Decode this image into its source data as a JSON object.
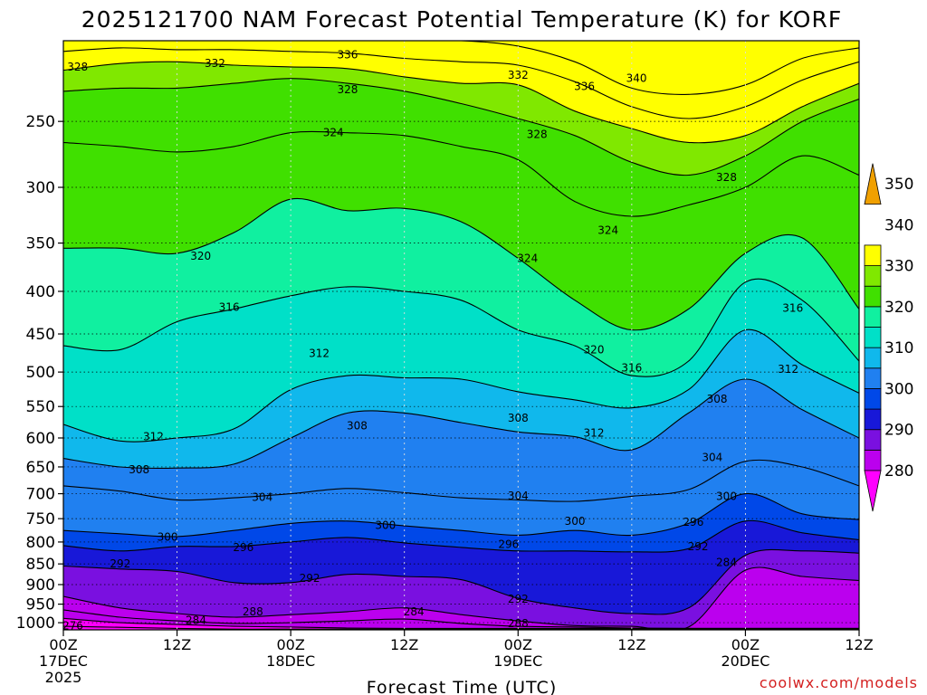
{
  "chart_data": {
    "type": "heatmap",
    "title": "2025121700 NAM Forecast Potential Temperature (K) for KORF",
    "xlabel": "Forecast Time (UTC)",
    "ylabel": "",
    "credit": "coolwx.com/models",
    "x_axis": {
      "range_hours": [
        0,
        84
      ],
      "ticks": [
        {
          "hour": 0,
          "label": "00Z",
          "date": "17DEC",
          "year": "2025"
        },
        {
          "hour": 12,
          "label": "12Z",
          "date": "",
          "year": ""
        },
        {
          "hour": 24,
          "label": "00Z",
          "date": "18DEC",
          "year": ""
        },
        {
          "hour": 36,
          "label": "12Z",
          "date": "",
          "year": ""
        },
        {
          "hour": 48,
          "label": "00Z",
          "date": "19DEC",
          "year": ""
        },
        {
          "hour": 60,
          "label": "12Z",
          "date": "",
          "year": ""
        },
        {
          "hour": 72,
          "label": "00Z",
          "date": "20DEC",
          "year": ""
        },
        {
          "hour": 84,
          "label": "12Z",
          "date": "",
          "year": ""
        }
      ]
    },
    "y_axis": {
      "range_hPa": [
        1020,
        200
      ],
      "ticks": [
        "250",
        "300",
        "350",
        "400",
        "450",
        "500",
        "550",
        "600",
        "650",
        "700",
        "750",
        "800",
        "850",
        "900",
        "950",
        "1000"
      ]
    },
    "colorbar": {
      "levels": [
        "280",
        "290",
        "300",
        "310",
        "320",
        "330",
        "340",
        "350"
      ],
      "colors": [
        "#ff00ff",
        "#bb00ee",
        "#7a10e0",
        "#1818d8",
        "#0048e8",
        "#2080f0",
        "#10b8ec",
        "#00e0c8",
        "#10f0a0",
        "#40e000",
        "#80e800",
        "#ffff00",
        "#f0a000"
      ]
    },
    "contour_interval_K": 4,
    "hours": [
      0,
      6,
      12,
      18,
      24,
      30,
      36,
      42,
      48,
      54,
      60,
      66,
      72,
      78,
      84
    ],
    "series": [
      {
        "name": "276",
        "pressure_hPa": [
          1010,
          1013,
          1016,
          1018,
          1018,
          1018,
          1018,
          1018,
          1018,
          1018,
          1018,
          1018,
          1018,
          1018,
          1018
        ]
      },
      {
        "name": "280",
        "pressure_hPa": [
          988,
          1000,
          1005,
          1010,
          1012,
          1015,
          1016,
          1016,
          1016,
          1016,
          1016,
          1016,
          1016,
          1016,
          1016
        ]
      },
      {
        "name": "284",
        "pressure_hPa": [
          965,
          985,
          995,
          1002,
          1000,
          995,
          990,
          1002,
          1010,
          1012,
          1015,
          1016,
          1016,
          1016,
          1016
        ]
      },
      {
        "name": "288",
        "pressure_hPa": [
          930,
          960,
          975,
          985,
          978,
          970,
          960,
          978,
          995,
          1008,
          1010,
          1012,
          865,
          880,
          890
        ]
      },
      {
        "name": "292",
        "pressure_hPa": [
          855,
          862,
          868,
          895,
          895,
          875,
          880,
          888,
          935,
          960,
          975,
          960,
          830,
          820,
          825
        ]
      },
      {
        "name": "296",
        "pressure_hPa": [
          808,
          820,
          810,
          810,
          800,
          790,
          802,
          812,
          820,
          820,
          822,
          815,
          755,
          780,
          795
        ]
      },
      {
        "name": "300",
        "pressure_hPa": [
          775,
          782,
          788,
          775,
          760,
          755,
          765,
          775,
          785,
          775,
          785,
          760,
          700,
          740,
          752
        ]
      },
      {
        "name": "304",
        "pressure_hPa": [
          685,
          695,
          712,
          708,
          700,
          690,
          698,
          708,
          712,
          715,
          705,
          692,
          640,
          650,
          685
        ]
      },
      {
        "name": "308",
        "pressure_hPa": [
          635,
          650,
          652,
          645,
          600,
          560,
          560,
          575,
          590,
          598,
          620,
          560,
          510,
          555,
          600
        ]
      },
      {
        "name": "312",
        "pressure_hPa": [
          578,
          605,
          600,
          585,
          525,
          505,
          508,
          510,
          528,
          540,
          552,
          525,
          445,
          490,
          530
        ]
      },
      {
        "name": "316",
        "pressure_hPa": [
          465,
          470,
          435,
          420,
          405,
          395,
          400,
          410,
          445,
          465,
          505,
          485,
          390,
          410,
          485
        ]
      },
      {
        "name": "320",
        "pressure_hPa": [
          355,
          355,
          360,
          340,
          310,
          320,
          318,
          330,
          365,
          410,
          445,
          420,
          360,
          345,
          420
        ]
      },
      {
        "name": "324",
        "pressure_hPa": [
          265,
          268,
          272,
          268,
          258,
          258,
          260,
          268,
          278,
          312,
          325,
          315,
          300,
          275,
          290
        ]
      },
      {
        "name": "328",
        "pressure_hPa": [
          230,
          228,
          228,
          225,
          222,
          225,
          230,
          238,
          248,
          260,
          280,
          290,
          275,
          250,
          235
        ]
      },
      {
        "name": "332",
        "pressure_hPa": [
          217,
          213,
          212,
          214,
          215,
          216,
          221,
          225,
          226,
          243,
          255,
          265,
          260,
          240,
          225
        ]
      },
      {
        "name": "336",
        "pressure_hPa": [
          206,
          204,
          205,
          205,
          206,
          207,
          210,
          212,
          214,
          224,
          240,
          248,
          240,
          223,
          212
        ]
      },
      {
        "name": "340",
        "pressure_hPa": [
          200,
          200,
          200,
          200,
          200,
          200,
          200,
          200,
          203,
          212,
          228,
          232,
          226,
          210,
          204
        ]
      }
    ],
    "contour_labels": [
      {
        "text": "328",
        "hour": 1.5,
        "p": 215
      },
      {
        "text": "332",
        "hour": 16,
        "p": 213
      },
      {
        "text": "336",
        "hour": 30,
        "p": 208
      },
      {
        "text": "328",
        "hour": 30,
        "p": 229
      },
      {
        "text": "324",
        "hour": 28.5,
        "p": 258
      },
      {
        "text": "332",
        "hour": 48,
        "p": 220
      },
      {
        "text": "336",
        "hour": 55,
        "p": 227
      },
      {
        "text": "340",
        "hour": 60.5,
        "p": 222
      },
      {
        "text": "328",
        "hour": 50,
        "p": 259
      },
      {
        "text": "328",
        "hour": 70,
        "p": 292
      },
      {
        "text": "324",
        "hour": 57.5,
        "p": 338
      },
      {
        "text": "324",
        "hour": 49,
        "p": 365
      },
      {
        "text": "320",
        "hour": 14.5,
        "p": 363
      },
      {
        "text": "316",
        "hour": 17.5,
        "p": 418
      },
      {
        "text": "320",
        "hour": 56,
        "p": 470
      },
      {
        "text": "312",
        "hour": 27,
        "p": 475
      },
      {
        "text": "316",
        "hour": 60,
        "p": 494
      },
      {
        "text": "316",
        "hour": 77,
        "p": 419
      },
      {
        "text": "312",
        "hour": 76.5,
        "p": 496
      },
      {
        "text": "308",
        "hour": 69,
        "p": 539
      },
      {
        "text": "308",
        "hour": 31,
        "p": 580
      },
      {
        "text": "308",
        "hour": 48,
        "p": 568
      },
      {
        "text": "312",
        "hour": 56,
        "p": 592
      },
      {
        "text": "312",
        "hour": 9.5,
        "p": 598
      },
      {
        "text": "308",
        "hour": 8,
        "p": 655
      },
      {
        "text": "304",
        "hour": 21,
        "p": 707
      },
      {
        "text": "304",
        "hour": 48,
        "p": 704
      },
      {
        "text": "304",
        "hour": 68.5,
        "p": 633
      },
      {
        "text": "300",
        "hour": 70,
        "p": 705
      },
      {
        "text": "300",
        "hour": 34,
        "p": 764
      },
      {
        "text": "300",
        "hour": 54,
        "p": 755
      },
      {
        "text": "296",
        "hour": 66.5,
        "p": 757
      },
      {
        "text": "300",
        "hour": 11,
        "p": 789
      },
      {
        "text": "296",
        "hour": 19,
        "p": 812
      },
      {
        "text": "296",
        "hour": 47,
        "p": 805
      },
      {
        "text": "292",
        "hour": 67,
        "p": 810
      },
      {
        "text": "284",
        "hour": 70,
        "p": 847
      },
      {
        "text": "292",
        "hour": 6,
        "p": 850
      },
      {
        "text": "292",
        "hour": 26,
        "p": 884
      },
      {
        "text": "292",
        "hour": 48,
        "p": 937
      },
      {
        "text": "288",
        "hour": 20,
        "p": 970
      },
      {
        "text": "284",
        "hour": 37,
        "p": 970
      },
      {
        "text": "284",
        "hour": 14,
        "p": 993
      },
      {
        "text": "288",
        "hour": 48,
        "p": 1002
      },
      {
        "text": "276",
        "hour": 1,
        "p": 1008
      }
    ]
  }
}
